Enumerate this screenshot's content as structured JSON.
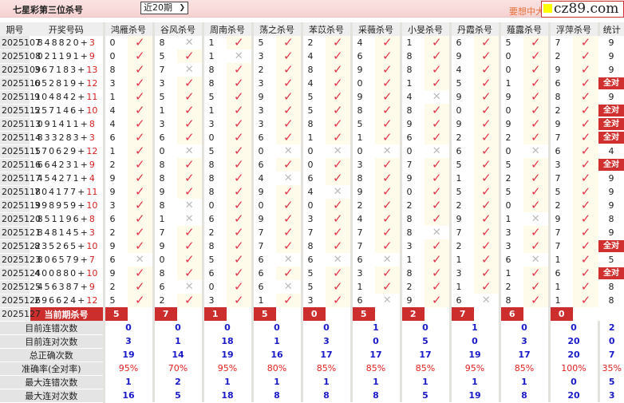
{
  "page": {
    "title": "七星彩第三位杀号",
    "period_select": "近20期",
    "promo_text": "要想中大",
    "watermark": "cz89.com"
  },
  "colors": {
    "check": "#e0364a",
    "cross": "#bbbbbb",
    "highlight_red": "#cc2e2e",
    "stat_blue": "#1a1ac8",
    "rate_red": "#e02020"
  },
  "headers": [
    "期号",
    "开奖号码",
    "鸿雁杀号",
    "谷风杀号",
    "周南杀号",
    "荡之杀号",
    "苯苡杀号",
    "采薇杀号",
    "小旻杀号",
    "丹霞杀号",
    "薤露杀号",
    "浮萍杀号",
    "统计"
  ],
  "rows": [
    {
      "issue": "2025107",
      "nums": "848820+",
      "bonus": "3",
      "kills": [
        [
          0,
          true
        ],
        [
          8,
          false
        ],
        [
          1,
          true
        ],
        [
          5,
          true
        ],
        [
          2,
          true
        ],
        [
          4,
          true
        ],
        [
          1,
          true
        ],
        [
          6,
          true
        ],
        [
          5,
          true
        ],
        [
          7,
          true
        ]
      ],
      "stat": "9"
    },
    {
      "issue": "2025108",
      "nums": "021191+",
      "bonus": "9",
      "kills": [
        [
          0,
          true
        ],
        [
          5,
          true
        ],
        [
          1,
          false
        ],
        [
          3,
          true
        ],
        [
          4,
          true
        ],
        [
          6,
          true
        ],
        [
          8,
          true
        ],
        [
          9,
          true
        ],
        [
          0,
          true
        ],
        [
          2,
          true
        ]
      ],
      "stat": "9"
    },
    {
      "issue": "2025109",
      "nums": "367183+",
      "bonus": "13",
      "kills": [
        [
          8,
          true
        ],
        [
          7,
          false
        ],
        [
          8,
          true
        ],
        [
          2,
          true
        ],
        [
          8,
          true
        ],
        [
          9,
          true
        ],
        [
          8,
          true
        ],
        [
          4,
          true
        ],
        [
          0,
          true
        ],
        [
          9,
          true
        ]
      ],
      "stat": "9"
    },
    {
      "issue": "2025110",
      "nums": "652819+",
      "bonus": "12",
      "kills": [
        [
          3,
          true
        ],
        [
          3,
          true
        ],
        [
          8,
          true
        ],
        [
          3,
          true
        ],
        [
          4,
          true
        ],
        [
          0,
          true
        ],
        [
          1,
          true
        ],
        [
          5,
          true
        ],
        [
          1,
          true
        ],
        [
          6,
          true
        ]
      ],
      "stat": "全对"
    },
    {
      "issue": "2025111",
      "nums": "904842+",
      "bonus": "11",
      "kills": [
        [
          1,
          true
        ],
        [
          5,
          true
        ],
        [
          5,
          true
        ],
        [
          9,
          true
        ],
        [
          5,
          true
        ],
        [
          9,
          true
        ],
        [
          4,
          false
        ],
        [
          9,
          true
        ],
        [
          9,
          true
        ],
        [
          8,
          true
        ]
      ],
      "stat": "9"
    },
    {
      "issue": "2025112",
      "nums": "557146+",
      "bonus": "10",
      "kills": [
        [
          4,
          true
        ],
        [
          1,
          true
        ],
        [
          1,
          true
        ],
        [
          3,
          true
        ],
        [
          5,
          true
        ],
        [
          8,
          true
        ],
        [
          8,
          true
        ],
        [
          0,
          true
        ],
        [
          0,
          true
        ],
        [
          2,
          true
        ]
      ],
      "stat": "全对"
    },
    {
      "issue": "2025113",
      "nums": "091411+",
      "bonus": "8",
      "kills": [
        [
          4,
          true
        ],
        [
          3,
          true
        ],
        [
          3,
          true
        ],
        [
          3,
          true
        ],
        [
          8,
          true
        ],
        [
          5,
          true
        ],
        [
          9,
          true
        ],
        [
          9,
          true
        ],
        [
          9,
          true
        ],
        [
          9,
          true
        ]
      ],
      "stat": "全对"
    },
    {
      "issue": "2025114",
      "nums": "833283+",
      "bonus": "3",
      "kills": [
        [
          6,
          true
        ],
        [
          6,
          true
        ],
        [
          0,
          true
        ],
        [
          6,
          true
        ],
        [
          1,
          true
        ],
        [
          1,
          true
        ],
        [
          6,
          true
        ],
        [
          2,
          true
        ],
        [
          2,
          true
        ],
        [
          7,
          true
        ]
      ],
      "stat": "全对"
    },
    {
      "issue": "2025115",
      "nums": "170629+",
      "bonus": "12",
      "kills": [
        [
          1,
          true
        ],
        [
          0,
          false
        ],
        [
          5,
          true
        ],
        [
          0,
          false
        ],
        [
          0,
          false
        ],
        [
          0,
          false
        ],
        [
          0,
          false
        ],
        [
          6,
          true
        ],
        [
          0,
          false
        ],
        [
          6,
          true
        ]
      ],
      "stat": "4"
    },
    {
      "issue": "2025116",
      "nums": "664231+",
      "bonus": "9",
      "kills": [
        [
          2,
          true
        ],
        [
          8,
          true
        ],
        [
          8,
          true
        ],
        [
          6,
          true
        ],
        [
          0,
          true
        ],
        [
          3,
          true
        ],
        [
          7,
          true
        ],
        [
          5,
          true
        ],
        [
          5,
          true
        ],
        [
          3,
          true
        ]
      ],
      "stat": "全对"
    },
    {
      "issue": "2025117",
      "nums": "454271+",
      "bonus": "4",
      "kills": [
        [
          9,
          true
        ],
        [
          8,
          true
        ],
        [
          8,
          true
        ],
        [
          4,
          false
        ],
        [
          6,
          true
        ],
        [
          8,
          true
        ],
        [
          9,
          true
        ],
        [
          1,
          true
        ],
        [
          2,
          true
        ],
        [
          7,
          true
        ]
      ],
      "stat": "9"
    },
    {
      "issue": "2025118",
      "nums": "704177+",
      "bonus": "11",
      "kills": [
        [
          9,
          true
        ],
        [
          9,
          true
        ],
        [
          8,
          true
        ],
        [
          9,
          true
        ],
        [
          4,
          false
        ],
        [
          9,
          true
        ],
        [
          0,
          true
        ],
        [
          5,
          true
        ],
        [
          5,
          true
        ],
        [
          5,
          true
        ]
      ],
      "stat": "9"
    },
    {
      "issue": "2025119",
      "nums": "398959+",
      "bonus": "10",
      "kills": [
        [
          3,
          true
        ],
        [
          8,
          false
        ],
        [
          0,
          true
        ],
        [
          0,
          true
        ],
        [
          0,
          true
        ],
        [
          2,
          true
        ],
        [
          2,
          true
        ],
        [
          2,
          true
        ],
        [
          0,
          true
        ],
        [
          2,
          true
        ]
      ],
      "stat": "9"
    },
    {
      "issue": "2025120",
      "nums": "851196+",
      "bonus": "8",
      "kills": [
        [
          6,
          true
        ],
        [
          1,
          false
        ],
        [
          6,
          true
        ],
        [
          9,
          true
        ],
        [
          3,
          true
        ],
        [
          4,
          true
        ],
        [
          8,
          true
        ],
        [
          9,
          true
        ],
        [
          1,
          false
        ],
        [
          9,
          true
        ]
      ],
      "stat": "8"
    },
    {
      "issue": "2025121",
      "nums": "848145+",
      "bonus": "3",
      "kills": [
        [
          2,
          true
        ],
        [
          7,
          true
        ],
        [
          2,
          true
        ],
        [
          7,
          true
        ],
        [
          7,
          true
        ],
        [
          7,
          true
        ],
        [
          8,
          false
        ],
        [
          7,
          true
        ],
        [
          3,
          true
        ],
        [
          7,
          true
        ]
      ],
      "stat": "9"
    },
    {
      "issue": "2025122",
      "nums": "835265+",
      "bonus": "10",
      "kills": [
        [
          9,
          true
        ],
        [
          9,
          true
        ],
        [
          8,
          true
        ],
        [
          7,
          true
        ],
        [
          8,
          true
        ],
        [
          7,
          true
        ],
        [
          3,
          true
        ],
        [
          2,
          true
        ],
        [
          3,
          true
        ],
        [
          7,
          true
        ]
      ],
      "stat": "全对"
    },
    {
      "issue": "2025123",
      "nums": "806579+",
      "bonus": "7",
      "kills": [
        [
          6,
          false
        ],
        [
          0,
          true
        ],
        [
          5,
          true
        ],
        [
          6,
          false
        ],
        [
          6,
          false
        ],
        [
          6,
          false
        ],
        [
          1,
          true
        ],
        [
          1,
          true
        ],
        [
          6,
          false
        ],
        [
          1,
          true
        ]
      ],
      "stat": "5"
    },
    {
      "issue": "2025124",
      "nums": "400880+",
      "bonus": "10",
      "kills": [
        [
          9,
          true
        ],
        [
          8,
          true
        ],
        [
          6,
          true
        ],
        [
          6,
          true
        ],
        [
          5,
          true
        ],
        [
          3,
          true
        ],
        [
          8,
          true
        ],
        [
          3,
          true
        ],
        [
          1,
          true
        ],
        [
          6,
          true
        ]
      ],
      "stat": "全对"
    },
    {
      "issue": "2025125",
      "nums": "456387+",
      "bonus": "9",
      "kills": [
        [
          2,
          true
        ],
        [
          6,
          false
        ],
        [
          0,
          true
        ],
        [
          6,
          false
        ],
        [
          5,
          true
        ],
        [
          1,
          true
        ],
        [
          2,
          true
        ],
        [
          1,
          true
        ],
        [
          2,
          true
        ],
        [
          1,
          true
        ]
      ],
      "stat": "8"
    },
    {
      "issue": "2025126",
      "nums": "296624+",
      "bonus": "12",
      "kills": [
        [
          5,
          true
        ],
        [
          2,
          true
        ],
        [
          3,
          true
        ],
        [
          1,
          true
        ],
        [
          3,
          true
        ],
        [
          6,
          false
        ],
        [
          9,
          true
        ],
        [
          6,
          false
        ],
        [
          8,
          true
        ],
        [
          1,
          true
        ]
      ],
      "stat": "8"
    }
  ],
  "current": {
    "issue": "2025127",
    "label": "当前期杀号",
    "kills": [
      "5",
      "7",
      "1",
      "5",
      "0",
      "5",
      "2",
      "7",
      "6",
      "0"
    ]
  },
  "stats": [
    {
      "label": "目前连错次数",
      "values": [
        "0",
        "0",
        "0",
        "0",
        "0",
        "1",
        "0",
        "1",
        "0",
        "0",
        "2"
      ]
    },
    {
      "label": "目前连对次数",
      "values": [
        "3",
        "1",
        "18",
        "1",
        "3",
        "0",
        "5",
        "0",
        "3",
        "20",
        "0"
      ]
    },
    {
      "label": "总正确次数",
      "values": [
        "19",
        "14",
        "19",
        "16",
        "17",
        "17",
        "17",
        "19",
        "17",
        "20",
        "7"
      ]
    },
    {
      "label": "准确率(全对率)",
      "values": [
        "95%",
        "70%",
        "95%",
        "80%",
        "85%",
        "85%",
        "85%",
        "95%",
        "85%",
        "100%",
        "35%"
      ],
      "is_rate": true
    },
    {
      "label": "最大连错次数",
      "values": [
        "1",
        "2",
        "1",
        "1",
        "1",
        "1",
        "1",
        "1",
        "1",
        "0",
        "5"
      ]
    },
    {
      "label": "最大连对次数",
      "values": [
        "16",
        "5",
        "18",
        "8",
        "8",
        "8",
        "5",
        "19",
        "8",
        "20",
        "3"
      ]
    }
  ]
}
